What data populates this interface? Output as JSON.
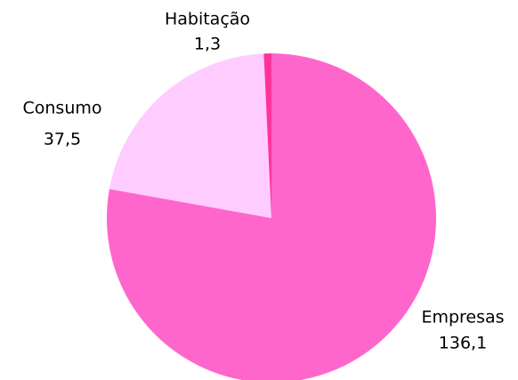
{
  "chart_data": {
    "type": "pie",
    "categories": [
      "Empresas",
      "Consumo",
      "Habitação"
    ],
    "values": [
      136.1,
      37.5,
      1.3
    ],
    "value_labels": [
      "136,1",
      "37,5",
      "1,3"
    ],
    "colors": [
      "#ff66cc",
      "#ffccff",
      "#ff3399"
    ]
  }
}
